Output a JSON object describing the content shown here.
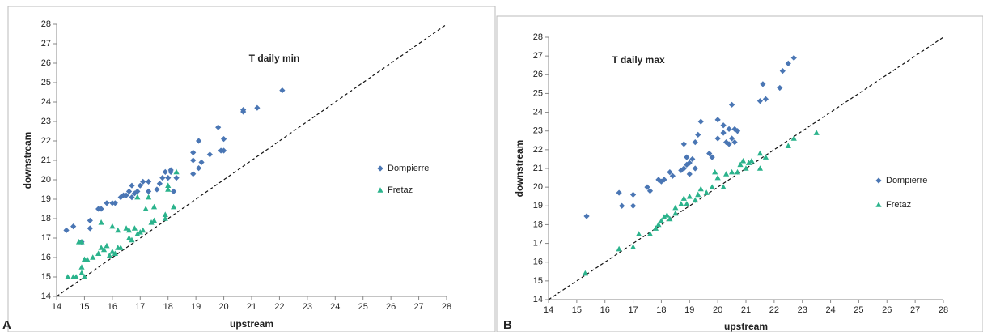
{
  "chart_data": [
    {
      "type": "scatter",
      "title": "T daily min",
      "panel_label": "A",
      "x_label": "upstream",
      "y_label": "downstream",
      "xlim": [
        14,
        28
      ],
      "ylim": [
        14,
        28
      ],
      "xticks": [
        14,
        15,
        16,
        17,
        18,
        19,
        20,
        21,
        22,
        23,
        24,
        25,
        26,
        27,
        28
      ],
      "yticks": [
        14,
        15,
        16,
        17,
        18,
        19,
        20,
        21,
        22,
        23,
        24,
        25,
        26,
        27,
        28
      ],
      "identity_line": true,
      "legend": "right",
      "series": [
        {
          "name": "Dompierre",
          "color": "#4a76b4",
          "marker": "diamond",
          "x": [
            14.35,
            14.6,
            14.9,
            15.2,
            15.2,
            15.5,
            15.6,
            15.8,
            16.0,
            16.1,
            16.3,
            16.4,
            16.5,
            16.6,
            16.7,
            16.8,
            16.7,
            16.9,
            17.0,
            17.1,
            17.3,
            17.3,
            17.6,
            17.7,
            17.8,
            17.9,
            18.0,
            18.1,
            18.1,
            18.2,
            18.3,
            18.9,
            18.9,
            18.9,
            19.1,
            19.1,
            19.2,
            19.5,
            19.8,
            19.9,
            20.0,
            20.0,
            20.7,
            20.7,
            21.2,
            22.1
          ],
          "values": [
            17.4,
            17.6,
            16.8,
            17.5,
            17.9,
            18.5,
            18.5,
            18.8,
            18.8,
            18.8,
            19.1,
            19.2,
            19.2,
            19.4,
            19.1,
            19.3,
            19.7,
            19.4,
            19.7,
            19.9,
            19.9,
            19.4,
            19.5,
            19.8,
            20.1,
            20.4,
            20.1,
            20.4,
            20.5,
            19.4,
            20.1,
            20.3,
            21.0,
            21.4,
            22.0,
            20.6,
            20.9,
            21.3,
            22.7,
            21.5,
            21.5,
            22.1,
            23.5,
            23.6,
            23.7,
            24.6
          ]
        },
        {
          "name": "Fretaz",
          "color": "#2bb38c",
          "marker": "triangle",
          "x": [
            14.4,
            14.6,
            14.7,
            14.8,
            14.9,
            14.9,
            14.9,
            15.0,
            15.1,
            15.0,
            15.3,
            15.5,
            15.6,
            15.6,
            15.7,
            15.8,
            15.9,
            16.0,
            16.0,
            16.1,
            16.2,
            16.2,
            16.3,
            16.5,
            16.6,
            16.6,
            16.7,
            16.8,
            16.9,
            16.9,
            17.0,
            17.1,
            17.2,
            17.3,
            17.4,
            17.5,
            17.5,
            17.9,
            17.9,
            18.0,
            18.0,
            18.2,
            18.3
          ],
          "values": [
            15.0,
            15.0,
            15.0,
            16.8,
            16.8,
            15.2,
            15.5,
            15.9,
            15.9,
            15.0,
            16.0,
            16.2,
            16.5,
            17.8,
            16.4,
            16.6,
            16.1,
            17.6,
            16.3,
            16.2,
            16.5,
            17.4,
            16.5,
            17.5,
            17.4,
            17.0,
            16.9,
            17.5,
            17.2,
            19.1,
            17.3,
            17.4,
            18.5,
            19.1,
            17.8,
            17.9,
            18.6,
            18.2,
            18.0,
            19.5,
            19.7,
            18.6,
            20.4
          ]
        }
      ]
    },
    {
      "type": "scatter",
      "title": "T daily max",
      "panel_label": "B",
      "x_label": "upstream",
      "y_label": "downstream",
      "xlim": [
        14,
        28
      ],
      "ylim": [
        14,
        28
      ],
      "xticks": [
        14,
        15,
        16,
        17,
        18,
        19,
        20,
        21,
        22,
        23,
        24,
        25,
        26,
        27,
        28
      ],
      "yticks": [
        14,
        15,
        16,
        17,
        18,
        19,
        20,
        21,
        22,
        23,
        24,
        25,
        26,
        27,
        28
      ],
      "identity_line": true,
      "legend": "right",
      "series": [
        {
          "name": "Dompierre",
          "color": "#4a76b4",
          "marker": "diamond",
          "x": [
            15.35,
            16.5,
            16.6,
            17.0,
            17.0,
            17.5,
            17.6,
            17.9,
            18.0,
            18.1,
            18.3,
            18.4,
            18.7,
            18.8,
            18.8,
            18.9,
            18.9,
            19.0,
            19.0,
            19.1,
            19.2,
            19.2,
            19.3,
            19.4,
            19.7,
            19.8,
            20.0,
            20.0,
            20.2,
            20.2,
            20.3,
            20.4,
            20.4,
            20.5,
            20.5,
            20.6,
            20.6,
            20.7,
            21.5,
            21.6,
            21.7,
            22.2,
            22.3,
            22.5,
            22.7
          ],
          "values": [
            18.45,
            19.7,
            19.0,
            19.6,
            19.0,
            20.0,
            19.8,
            20.4,
            20.3,
            20.4,
            20.8,
            20.6,
            20.9,
            21.0,
            22.3,
            21.6,
            21.2,
            20.7,
            21.3,
            21.5,
            21.0,
            22.4,
            22.8,
            23.5,
            21.8,
            21.6,
            22.6,
            23.6,
            22.9,
            23.3,
            22.4,
            22.3,
            23.1,
            22.6,
            24.4,
            23.1,
            22.4,
            23.0,
            24.6,
            25.5,
            24.7,
            25.3,
            26.2,
            26.6,
            26.9
          ]
        },
        {
          "name": "Fretaz",
          "color": "#2bb38c",
          "marker": "triangle",
          "x": [
            15.3,
            16.5,
            17.0,
            17.2,
            17.6,
            17.8,
            17.9,
            18.0,
            18.1,
            18.2,
            18.3,
            18.5,
            18.5,
            18.7,
            18.8,
            18.9,
            19.0,
            19.2,
            19.3,
            19.4,
            19.6,
            19.8,
            19.9,
            20.0,
            20.2,
            20.3,
            20.5,
            20.7,
            20.8,
            20.9,
            21.0,
            21.1,
            21.2,
            21.5,
            21.5,
            21.7,
            22.5,
            22.7,
            23.5
          ],
          "values": [
            15.4,
            16.7,
            16.8,
            17.5,
            17.5,
            17.8,
            18.0,
            18.2,
            18.4,
            18.5,
            18.3,
            18.6,
            18.9,
            19.1,
            19.4,
            19.1,
            19.5,
            19.3,
            19.6,
            19.9,
            19.7,
            20.0,
            20.8,
            20.5,
            20.0,
            20.7,
            20.8,
            20.8,
            21.2,
            21.4,
            21.0,
            21.3,
            21.4,
            21.8,
            21.0,
            21.6,
            22.2,
            22.6,
            22.9
          ]
        }
      ]
    }
  ]
}
